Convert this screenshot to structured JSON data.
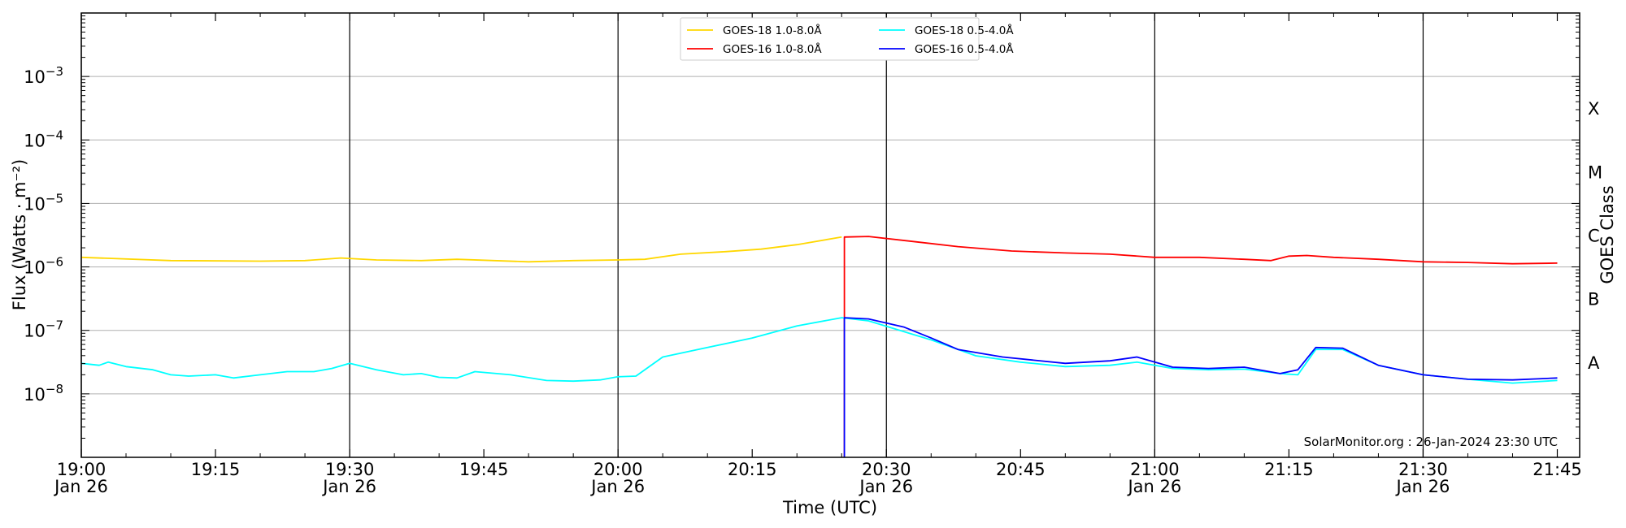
{
  "chart_data": {
    "type": "line",
    "xlabel": "Time (UTC)",
    "ylabel": "Flux (Watts · m⁻²)",
    "ylabel_right": "GOES Class",
    "xlim": [
      "19:00",
      "21:45"
    ],
    "ylim": [
      1e-09,
      0.01
    ],
    "yscale": "log",
    "grid": "horizontal gridlines at each decade",
    "legend_position": "top-center",
    "credit": "SolarMonitor.org : 26-Jan-2024 23:30 UTC",
    "x_ticks": [
      {
        "t": 0,
        "time": "19:00",
        "date": "Jan 26"
      },
      {
        "t": 15,
        "time": "19:15",
        "date": ""
      },
      {
        "t": 30,
        "time": "19:30",
        "date": "Jan 26"
      },
      {
        "t": 45,
        "time": "19:45",
        "date": ""
      },
      {
        "t": 60,
        "time": "20:00",
        "date": "Jan 26"
      },
      {
        "t": 75,
        "time": "20:15",
        "date": ""
      },
      {
        "t": 90,
        "time": "20:30",
        "date": "Jan 26"
      },
      {
        "t": 105,
        "time": "20:45",
        "date": ""
      },
      {
        "t": 120,
        "time": "21:00",
        "date": "Jan 26"
      },
      {
        "t": 135,
        "time": "21:15",
        "date": ""
      },
      {
        "t": 150,
        "time": "21:30",
        "date": "Jan 26"
      },
      {
        "t": 165,
        "time": "21:45",
        "date": ""
      }
    ],
    "y_ticks": [
      {
        "exp": -3,
        "base": "10",
        "sup": "−3"
      },
      {
        "exp": -4,
        "base": "10",
        "sup": "−4"
      },
      {
        "exp": -5,
        "base": "10",
        "sup": "−5"
      },
      {
        "exp": -6,
        "base": "10",
        "sup": "−6"
      },
      {
        "exp": -7,
        "base": "10",
        "sup": "−7"
      },
      {
        "exp": -8,
        "base": "10",
        "sup": "−8"
      }
    ],
    "goes_classes": [
      {
        "label": "X",
        "exp": -3.5
      },
      {
        "label": "M",
        "exp": -4.5
      },
      {
        "label": "C",
        "exp": -5.5
      },
      {
        "label": "B",
        "exp": -6.5
      },
      {
        "label": "A",
        "exp": -7.5
      }
    ],
    "vlines_minutes": [
      0,
      30,
      60,
      90,
      120,
      150
    ],
    "series": [
      {
        "name": "GOES-18 1.0-8.0Å",
        "color": "#FFD700",
        "log_points": [
          [
            0,
            -5.85
          ],
          [
            10,
            -5.9
          ],
          [
            20,
            -5.91
          ],
          [
            25,
            -5.9
          ],
          [
            29,
            -5.86
          ],
          [
            33,
            -5.89
          ],
          [
            38,
            -5.9
          ],
          [
            42,
            -5.88
          ],
          [
            50,
            -5.92
          ],
          [
            55,
            -5.9
          ],
          [
            60,
            -5.89
          ],
          [
            63,
            -5.88
          ],
          [
            67,
            -5.8
          ],
          [
            72,
            -5.76
          ],
          [
            76,
            -5.72
          ],
          [
            80,
            -5.65
          ],
          [
            85,
            -5.53
          ]
        ]
      },
      {
        "name": "GOES-16 1.0-8.0Å",
        "color": "#FF0000",
        "log_points": [
          [
            85.3,
            -9.0
          ],
          [
            85.3,
            -5.53
          ],
          [
            88,
            -5.52
          ],
          [
            93,
            -5.6
          ],
          [
            98,
            -5.68
          ],
          [
            104,
            -5.75
          ],
          [
            110,
            -5.78
          ],
          [
            115,
            -5.8
          ],
          [
            120,
            -5.85
          ],
          [
            125,
            -5.85
          ],
          [
            130,
            -5.88
          ],
          [
            133,
            -5.9
          ],
          [
            135,
            -5.83
          ],
          [
            137,
            -5.82
          ],
          [
            140,
            -5.85
          ],
          [
            145,
            -5.88
          ],
          [
            150,
            -5.92
          ],
          [
            155,
            -5.93
          ],
          [
            160,
            -5.95
          ],
          [
            165,
            -5.94
          ]
        ]
      },
      {
        "name": "GOES-18 0.5-4.0Å",
        "color": "#00FFFF",
        "log_points": [
          [
            0,
            -7.52
          ],
          [
            2,
            -7.55
          ],
          [
            3,
            -7.5
          ],
          [
            5,
            -7.57
          ],
          [
            8,
            -7.62
          ],
          [
            10,
            -7.7
          ],
          [
            12,
            -7.72
          ],
          [
            15,
            -7.7
          ],
          [
            17,
            -7.75
          ],
          [
            20,
            -7.7
          ],
          [
            23,
            -7.65
          ],
          [
            26,
            -7.65
          ],
          [
            28,
            -7.6
          ],
          [
            30,
            -7.52
          ],
          [
            33,
            -7.62
          ],
          [
            36,
            -7.7
          ],
          [
            38,
            -7.68
          ],
          [
            40,
            -7.74
          ],
          [
            42,
            -7.75
          ],
          [
            44,
            -7.65
          ],
          [
            48,
            -7.7
          ],
          [
            52,
            -7.79
          ],
          [
            55,
            -7.8
          ],
          [
            58,
            -7.78
          ],
          [
            60,
            -7.73
          ],
          [
            62,
            -7.72
          ],
          [
            65,
            -7.42
          ],
          [
            70,
            -7.27
          ],
          [
            75,
            -7.12
          ],
          [
            80,
            -6.93
          ],
          [
            85,
            -6.8
          ],
          [
            88,
            -6.85
          ],
          [
            95,
            -7.15
          ],
          [
            100,
            -7.4
          ],
          [
            105,
            -7.5
          ],
          [
            110,
            -7.57
          ],
          [
            115,
            -7.55
          ],
          [
            118,
            -7.5
          ],
          [
            122,
            -7.6
          ],
          [
            126,
            -7.62
          ],
          [
            130,
            -7.61
          ],
          [
            134,
            -7.68
          ],
          [
            136,
            -7.7
          ],
          [
            138,
            -7.3
          ],
          [
            141,
            -7.3
          ],
          [
            145,
            -7.55
          ],
          [
            150,
            -7.7
          ],
          [
            155,
            -7.77
          ],
          [
            160,
            -7.83
          ],
          [
            165,
            -7.79
          ]
        ]
      },
      {
        "name": "GOES-16 0.5-4.0Å",
        "color": "#0000FF",
        "log_points": [
          [
            85.3,
            -9.0
          ],
          [
            85.3,
            -6.8
          ],
          [
            88,
            -6.82
          ],
          [
            92,
            -6.95
          ],
          [
            95,
            -7.12
          ],
          [
            98,
            -7.3
          ],
          [
            103,
            -7.42
          ],
          [
            110,
            -7.52
          ],
          [
            115,
            -7.48
          ],
          [
            118,
            -7.42
          ],
          [
            122,
            -7.58
          ],
          [
            126,
            -7.6
          ],
          [
            130,
            -7.58
          ],
          [
            134,
            -7.68
          ],
          [
            136,
            -7.62
          ],
          [
            138,
            -7.27
          ],
          [
            141,
            -7.28
          ],
          [
            145,
            -7.55
          ],
          [
            150,
            -7.7
          ],
          [
            155,
            -7.77
          ],
          [
            160,
            -7.78
          ],
          [
            165,
            -7.75
          ]
        ]
      }
    ]
  }
}
